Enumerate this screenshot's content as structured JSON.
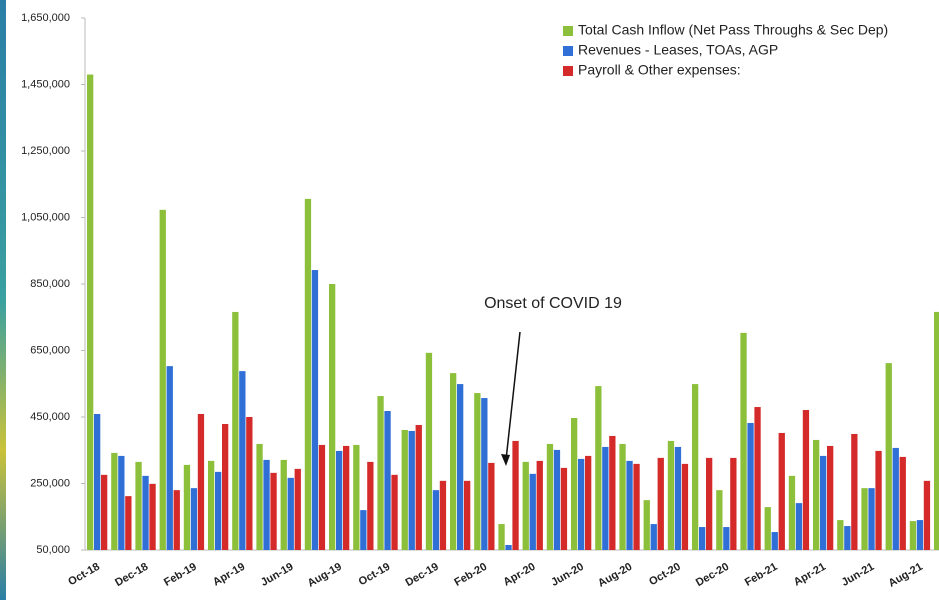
{
  "chart_data": {
    "type": "bar",
    "categories": [
      "Oct-18",
      null,
      "Dec-18",
      null,
      "Feb-19",
      null,
      "Apr-19",
      null,
      "Jun-19",
      null,
      "Aug-19",
      null,
      "Oct-19",
      null,
      "Dec-19",
      null,
      "Feb-20",
      null,
      "Apr-20",
      null,
      "Jun-20",
      null,
      "Aug-20",
      null,
      "Oct-20",
      null,
      "Dec-20",
      null,
      "Feb-21",
      null,
      "Apr-21",
      null,
      "Jun-21",
      null,
      "Aug-21",
      null
    ],
    "series": [
      {
        "name": "Total Cash Inflow (Net Pass Throughs & Sec Dep)",
        "color": "#8cbf3a",
        "values": [
          1480000,
          342000,
          315000,
          1073000,
          306000,
          318000,
          766000,
          369000,
          321000,
          1106000,
          850000,
          366000,
          513000,
          411000,
          643000,
          582000,
          522000,
          128000,
          315000,
          369000,
          447000,
          543000,
          369000,
          200000,
          378000,
          549000,
          230000,
          703000,
          179000,
          273000,
          381000,
          140000,
          236000,
          612000,
          137000,
          766000
        ]
      },
      {
        "name": "Revenues - Leases, TOAs, AGP",
        "color": "#2f6fd6",
        "values": [
          459000,
          333000,
          273000,
          603000,
          236000,
          285000,
          588000,
          321000,
          267000,
          892000,
          348000,
          170000,
          468000,
          408000,
          230000,
          549000,
          507000,
          65000,
          279000,
          351000,
          324000,
          360000,
          318000,
          128000,
          360000,
          119000,
          119000,
          432000,
          104000,
          191000,
          333000,
          122000,
          236000,
          357000,
          140000,
          null
        ]
      },
      {
        "name": "Payroll & Other expenses:",
        "color": "#d42a2a",
        "values": [
          276000,
          212000,
          249000,
          230000,
          459000,
          429000,
          450000,
          282000,
          294000,
          366000,
          363000,
          315000,
          276000,
          426000,
          258000,
          258000,
          312000,
          378000,
          318000,
          297000,
          333000,
          393000,
          309000,
          327000,
          309000,
          327000,
          327000,
          480000,
          402000,
          471000,
          363000,
          399000,
          348000,
          330000,
          258000,
          null
        ]
      }
    ],
    "ylim": [
      50000,
      1650000
    ],
    "yticks": [
      {
        "value": 50000,
        "label": "50,000"
      },
      {
        "value": 250000,
        "label": "250,000"
      },
      {
        "value": 450000,
        "label": "450,000"
      },
      {
        "value": 650000,
        "label": "650,000"
      },
      {
        "value": 850000,
        "label": "850,000"
      },
      {
        "value": 1050000,
        "label": "1,050,000"
      },
      {
        "value": 1250000,
        "label": "1,250,000"
      },
      {
        "value": 1450000,
        "label": "1,450,000"
      },
      {
        "value": 1650000,
        "label": "1,650,000"
      }
    ],
    "annotation": "Onset of COVID 19",
    "legend": "top-right"
  }
}
